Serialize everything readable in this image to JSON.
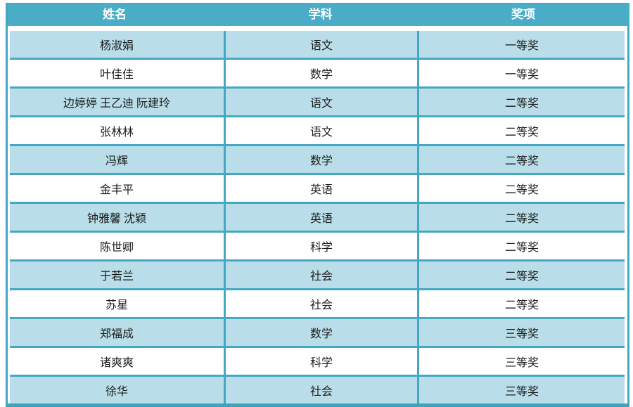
{
  "table": {
    "columns": [
      {
        "key": "name",
        "label": "姓名"
      },
      {
        "key": "subject",
        "label": "学科"
      },
      {
        "key": "award",
        "label": "奖项"
      }
    ],
    "rows": [
      {
        "name": "杨淑娟",
        "subject": "语文",
        "award": "一等奖"
      },
      {
        "name": "叶佳佳",
        "subject": "数学",
        "award": "一等奖"
      },
      {
        "name": "边婷婷 王乙迪 阮建玲",
        "subject": "语文",
        "award": "二等奖"
      },
      {
        "name": "张林林",
        "subject": "语文",
        "award": "二等奖"
      },
      {
        "name": "冯辉",
        "subject": "数学",
        "award": "二等奖"
      },
      {
        "name": "金丰平",
        "subject": "英语",
        "award": "二等奖"
      },
      {
        "name": "钟雅馨 沈颖",
        "subject": "英语",
        "award": "二等奖"
      },
      {
        "name": "陈世卿",
        "subject": "科学",
        "award": "二等奖"
      },
      {
        "name": "于若兰",
        "subject": "社会",
        "award": "二等奖"
      },
      {
        "name": "苏星",
        "subject": "社会",
        "award": "二等奖"
      },
      {
        "name": "郑福成",
        "subject": "数学",
        "award": "三等奖"
      },
      {
        "name": "诸爽爽",
        "subject": "科学",
        "award": "三等奖"
      },
      {
        "name": "徐华",
        "subject": "社会",
        "award": "三等奖"
      }
    ]
  },
  "colors": {
    "header_bg": "#4AACC6",
    "band_bg": "#B9DEE9",
    "separator": "#45A8C3",
    "bottom_border": "#3EA3BF",
    "header_text": "#FFFFFF",
    "body_text": "#1C1C1C"
  }
}
